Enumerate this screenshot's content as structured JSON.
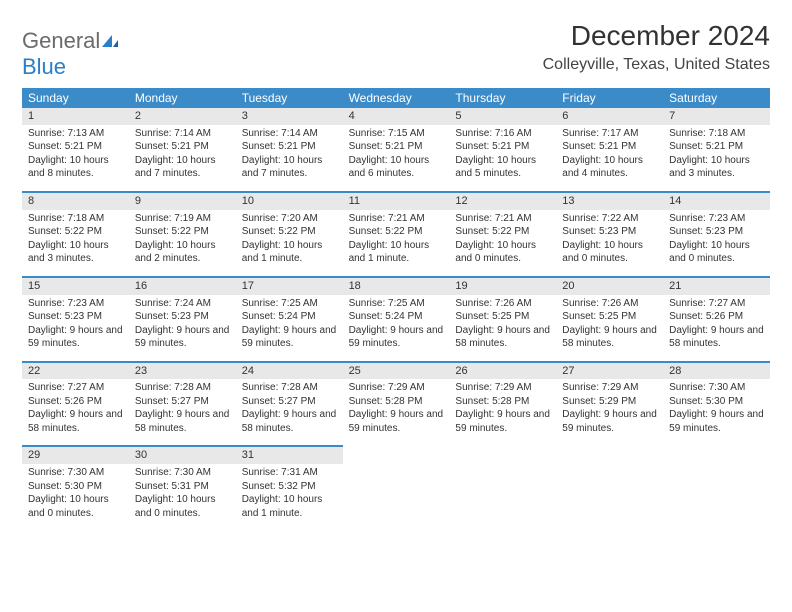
{
  "logo": {
    "general": "General",
    "blue": "Blue"
  },
  "title": "December 2024",
  "location": "Colleyville, Texas, United States",
  "colors": {
    "header_bg": "#3b8bc9",
    "header_text": "#ffffff",
    "daynum_bg": "#e8e8e8",
    "accent_border": "#3b8bc9",
    "logo_gray": "#6b6b6b",
    "logo_blue": "#2a7fc9",
    "page_bg": "#ffffff",
    "text": "#333333"
  },
  "fonts": {
    "title_size_pt": 21,
    "location_size_pt": 12,
    "weekday_size_pt": 9,
    "daynum_size_pt": 8.5,
    "body_size_pt": 7.5
  },
  "weekdays": [
    "Sunday",
    "Monday",
    "Tuesday",
    "Wednesday",
    "Thursday",
    "Friday",
    "Saturday"
  ],
  "weeks": [
    [
      {
        "n": "1",
        "sunrise": "Sunrise: 7:13 AM",
        "sunset": "Sunset: 5:21 PM",
        "daylight": "Daylight: 10 hours and 8 minutes."
      },
      {
        "n": "2",
        "sunrise": "Sunrise: 7:14 AM",
        "sunset": "Sunset: 5:21 PM",
        "daylight": "Daylight: 10 hours and 7 minutes."
      },
      {
        "n": "3",
        "sunrise": "Sunrise: 7:14 AM",
        "sunset": "Sunset: 5:21 PM",
        "daylight": "Daylight: 10 hours and 7 minutes."
      },
      {
        "n": "4",
        "sunrise": "Sunrise: 7:15 AM",
        "sunset": "Sunset: 5:21 PM",
        "daylight": "Daylight: 10 hours and 6 minutes."
      },
      {
        "n": "5",
        "sunrise": "Sunrise: 7:16 AM",
        "sunset": "Sunset: 5:21 PM",
        "daylight": "Daylight: 10 hours and 5 minutes."
      },
      {
        "n": "6",
        "sunrise": "Sunrise: 7:17 AM",
        "sunset": "Sunset: 5:21 PM",
        "daylight": "Daylight: 10 hours and 4 minutes."
      },
      {
        "n": "7",
        "sunrise": "Sunrise: 7:18 AM",
        "sunset": "Sunset: 5:21 PM",
        "daylight": "Daylight: 10 hours and 3 minutes."
      }
    ],
    [
      {
        "n": "8",
        "sunrise": "Sunrise: 7:18 AM",
        "sunset": "Sunset: 5:22 PM",
        "daylight": "Daylight: 10 hours and 3 minutes."
      },
      {
        "n": "9",
        "sunrise": "Sunrise: 7:19 AM",
        "sunset": "Sunset: 5:22 PM",
        "daylight": "Daylight: 10 hours and 2 minutes."
      },
      {
        "n": "10",
        "sunrise": "Sunrise: 7:20 AM",
        "sunset": "Sunset: 5:22 PM",
        "daylight": "Daylight: 10 hours and 1 minute."
      },
      {
        "n": "11",
        "sunrise": "Sunrise: 7:21 AM",
        "sunset": "Sunset: 5:22 PM",
        "daylight": "Daylight: 10 hours and 1 minute."
      },
      {
        "n": "12",
        "sunrise": "Sunrise: 7:21 AM",
        "sunset": "Sunset: 5:22 PM",
        "daylight": "Daylight: 10 hours and 0 minutes."
      },
      {
        "n": "13",
        "sunrise": "Sunrise: 7:22 AM",
        "sunset": "Sunset: 5:23 PM",
        "daylight": "Daylight: 10 hours and 0 minutes."
      },
      {
        "n": "14",
        "sunrise": "Sunrise: 7:23 AM",
        "sunset": "Sunset: 5:23 PM",
        "daylight": "Daylight: 10 hours and 0 minutes."
      }
    ],
    [
      {
        "n": "15",
        "sunrise": "Sunrise: 7:23 AM",
        "sunset": "Sunset: 5:23 PM",
        "daylight": "Daylight: 9 hours and 59 minutes."
      },
      {
        "n": "16",
        "sunrise": "Sunrise: 7:24 AM",
        "sunset": "Sunset: 5:23 PM",
        "daylight": "Daylight: 9 hours and 59 minutes."
      },
      {
        "n": "17",
        "sunrise": "Sunrise: 7:25 AM",
        "sunset": "Sunset: 5:24 PM",
        "daylight": "Daylight: 9 hours and 59 minutes."
      },
      {
        "n": "18",
        "sunrise": "Sunrise: 7:25 AM",
        "sunset": "Sunset: 5:24 PM",
        "daylight": "Daylight: 9 hours and 59 minutes."
      },
      {
        "n": "19",
        "sunrise": "Sunrise: 7:26 AM",
        "sunset": "Sunset: 5:25 PM",
        "daylight": "Daylight: 9 hours and 58 minutes."
      },
      {
        "n": "20",
        "sunrise": "Sunrise: 7:26 AM",
        "sunset": "Sunset: 5:25 PM",
        "daylight": "Daylight: 9 hours and 58 minutes."
      },
      {
        "n": "21",
        "sunrise": "Sunrise: 7:27 AM",
        "sunset": "Sunset: 5:26 PM",
        "daylight": "Daylight: 9 hours and 58 minutes."
      }
    ],
    [
      {
        "n": "22",
        "sunrise": "Sunrise: 7:27 AM",
        "sunset": "Sunset: 5:26 PM",
        "daylight": "Daylight: 9 hours and 58 minutes."
      },
      {
        "n": "23",
        "sunrise": "Sunrise: 7:28 AM",
        "sunset": "Sunset: 5:27 PM",
        "daylight": "Daylight: 9 hours and 58 minutes."
      },
      {
        "n": "24",
        "sunrise": "Sunrise: 7:28 AM",
        "sunset": "Sunset: 5:27 PM",
        "daylight": "Daylight: 9 hours and 58 minutes."
      },
      {
        "n": "25",
        "sunrise": "Sunrise: 7:29 AM",
        "sunset": "Sunset: 5:28 PM",
        "daylight": "Daylight: 9 hours and 59 minutes."
      },
      {
        "n": "26",
        "sunrise": "Sunrise: 7:29 AM",
        "sunset": "Sunset: 5:28 PM",
        "daylight": "Daylight: 9 hours and 59 minutes."
      },
      {
        "n": "27",
        "sunrise": "Sunrise: 7:29 AM",
        "sunset": "Sunset: 5:29 PM",
        "daylight": "Daylight: 9 hours and 59 minutes."
      },
      {
        "n": "28",
        "sunrise": "Sunrise: 7:30 AM",
        "sunset": "Sunset: 5:30 PM",
        "daylight": "Daylight: 9 hours and 59 minutes."
      }
    ],
    [
      {
        "n": "29",
        "sunrise": "Sunrise: 7:30 AM",
        "sunset": "Sunset: 5:30 PM",
        "daylight": "Daylight: 10 hours and 0 minutes."
      },
      {
        "n": "30",
        "sunrise": "Sunrise: 7:30 AM",
        "sunset": "Sunset: 5:31 PM",
        "daylight": "Daylight: 10 hours and 0 minutes."
      },
      {
        "n": "31",
        "sunrise": "Sunrise: 7:31 AM",
        "sunset": "Sunset: 5:32 PM",
        "daylight": "Daylight: 10 hours and 1 minute."
      },
      null,
      null,
      null,
      null
    ]
  ]
}
